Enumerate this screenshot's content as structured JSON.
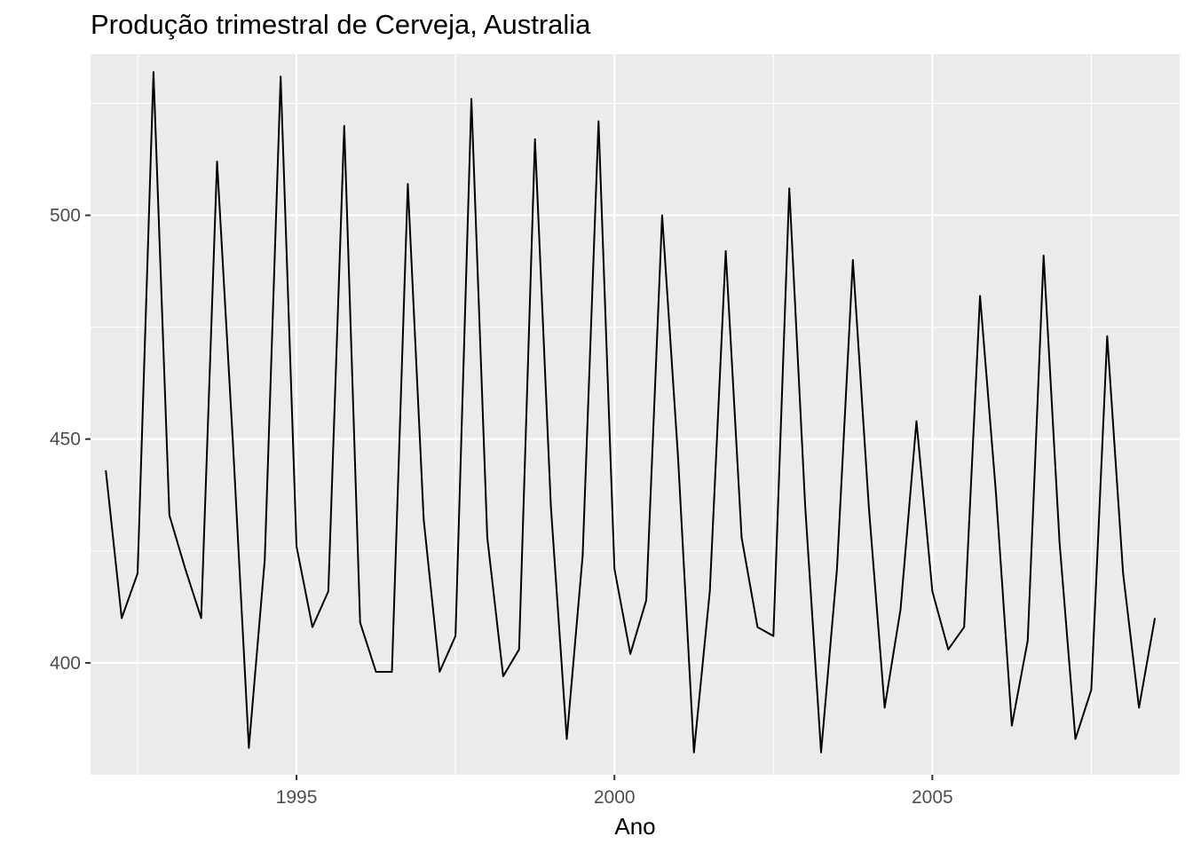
{
  "chart_data": {
    "type": "line",
    "title": "Produção trimestral de Cerveja, Australia",
    "xlabel": "Ano",
    "ylabel": "",
    "xlim": [
      1991.76,
      2008.89
    ],
    "ylim": [
      375,
      536
    ],
    "x_ticks": [
      1995,
      2000,
      2005
    ],
    "x_tick_labels": [
      "1995",
      "2000",
      "2005"
    ],
    "y_ticks": [
      400,
      450,
      500
    ],
    "y_tick_labels": [
      "400",
      "450",
      "500"
    ],
    "grid": true,
    "legend": "none",
    "background_color": "#ebebeb",
    "grid_color": "#ffffff",
    "line_color": "#000000",
    "series": [
      {
        "start": 1992.0,
        "step": 0.25,
        "values": [
          443,
          410,
          420,
          532,
          433,
          421,
          410,
          512,
          449,
          381,
          423,
          531,
          426,
          408,
          416,
          520,
          409,
          398,
          398,
          507,
          432,
          398,
          406,
          526,
          428,
          397,
          403,
          517,
          435,
          383,
          424,
          521,
          421,
          402,
          414,
          500,
          446,
          380,
          416,
          492,
          428,
          408,
          406,
          506,
          435,
          380,
          421,
          490,
          435,
          390,
          412,
          454,
          416,
          403,
          408,
          482,
          438,
          386,
          405,
          491,
          427,
          383,
          394,
          473,
          420,
          390,
          410
        ]
      }
    ]
  }
}
